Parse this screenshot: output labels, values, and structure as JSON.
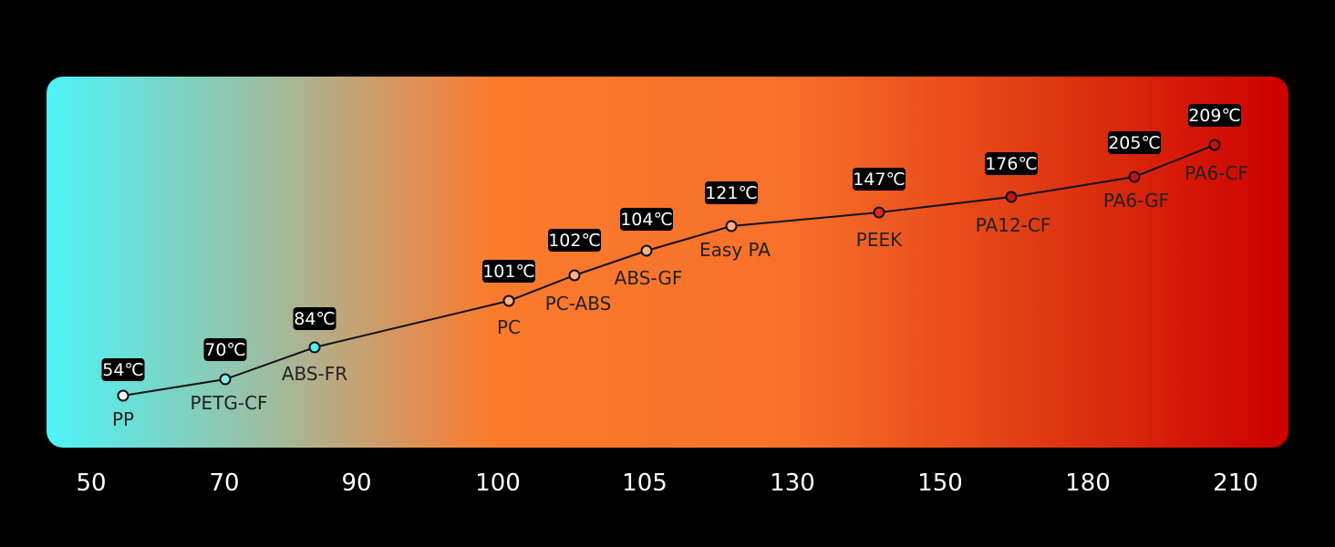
{
  "chart_data": {
    "type": "line",
    "x_tick_labels": [
      "50",
      "70",
      "90",
      "100",
      "105",
      "130",
      "150",
      "180",
      "210"
    ],
    "unit": "℃",
    "value_labels": [
      "54℃",
      "70℃",
      "84℃",
      "101℃",
      "102℃",
      "104℃",
      "121℃",
      "147℃",
      "176℃",
      "205℃",
      "209℃"
    ],
    "points": [
      {
        "material": "PP",
        "value": 54,
        "label": "54℃"
      },
      {
        "material": "PETG-CF",
        "value": 70,
        "label": "70℃"
      },
      {
        "material": "ABS-FR",
        "value": 84,
        "label": "84℃"
      },
      {
        "material": "PC",
        "value": 101,
        "label": "101℃"
      },
      {
        "material": "PC-ABS",
        "value": 102,
        "label": "102℃"
      },
      {
        "material": "ABS-GF",
        "value": 104,
        "label": "104℃"
      },
      {
        "material": "Easy PA",
        "value": 121,
        "label": "121℃"
      },
      {
        "material": "PEEK",
        "value": 147,
        "label": "147℃"
      },
      {
        "material": "PA12-CF",
        "value": 176,
        "label": "176℃"
      },
      {
        "material": "PA6-GF",
        "value": 205,
        "label": "205℃"
      },
      {
        "material": "PA6-CF",
        "value": 209,
        "label": "209℃"
      }
    ],
    "gradient_colors": [
      "#4df3f7",
      "#c9a47a",
      "#fb7b2c",
      "#f06020",
      "#d41400",
      "#cc0000"
    ],
    "point_fill_colors": [
      "#ffffff",
      "#7ef0ec",
      "#4df3f7",
      "#ffb088",
      "#ffb088",
      "#ffb088",
      "#ffb088",
      "#e02a12",
      "#c81010",
      "#c81010",
      "#c81010"
    ],
    "grid": false,
    "legend": "none"
  }
}
